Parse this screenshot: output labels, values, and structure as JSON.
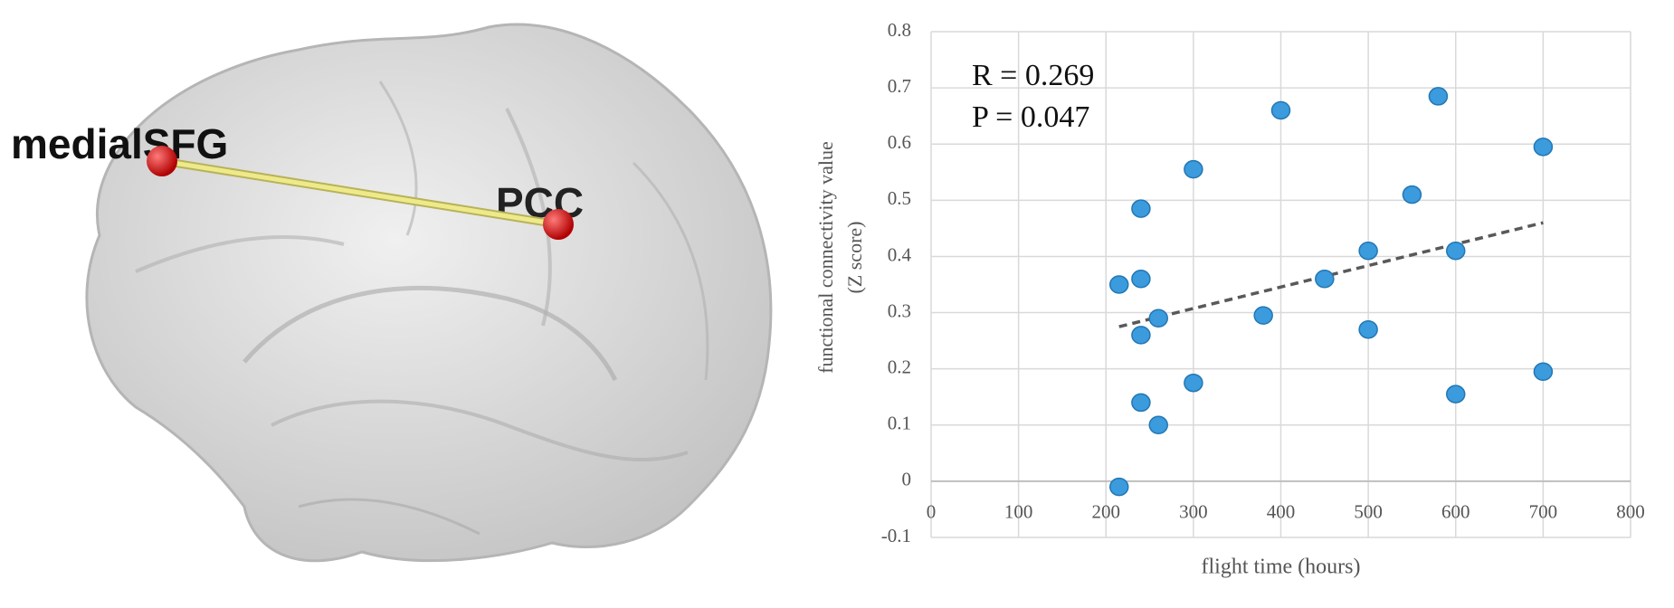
{
  "brain": {
    "labels": [
      "medialSFG",
      "PCC"
    ]
  },
  "chart_data": {
    "type": "scatter",
    "x": [
      215,
      215,
      240,
      240,
      240,
      240,
      260,
      260,
      300,
      300,
      380,
      400,
      450,
      500,
      500,
      550,
      580,
      600,
      600,
      700,
      700
    ],
    "values": [
      -0.01,
      0.35,
      0.36,
      0.485,
      0.26,
      0.14,
      0.29,
      0.1,
      0.555,
      0.175,
      0.295,
      0.66,
      0.36,
      0.41,
      0.27,
      0.51,
      0.685,
      0.41,
      0.155,
      0.595,
      0.195
    ],
    "color": "#3b9bdc",
    "trendline": {
      "x": [
        215,
        700
      ],
      "values": [
        0.275,
        0.46
      ],
      "color": "#595959"
    },
    "xlim": [
      0,
      800
    ],
    "xticks": [
      0,
      100,
      200,
      300,
      400,
      500,
      600,
      700,
      800
    ],
    "ylim": [
      -0.1,
      0.8
    ],
    "yticks": [
      -0.1,
      0,
      0.1,
      0.2,
      0.3,
      0.4,
      0.5,
      0.6,
      0.7,
      0.8
    ],
    "grid": true,
    "x_label": "flight time (hours)",
    "y_label": [
      "functional connectivity value",
      "(Z score)"
    ],
    "annotations": [
      "R = 0.269",
      "P = 0.047"
    ]
  }
}
